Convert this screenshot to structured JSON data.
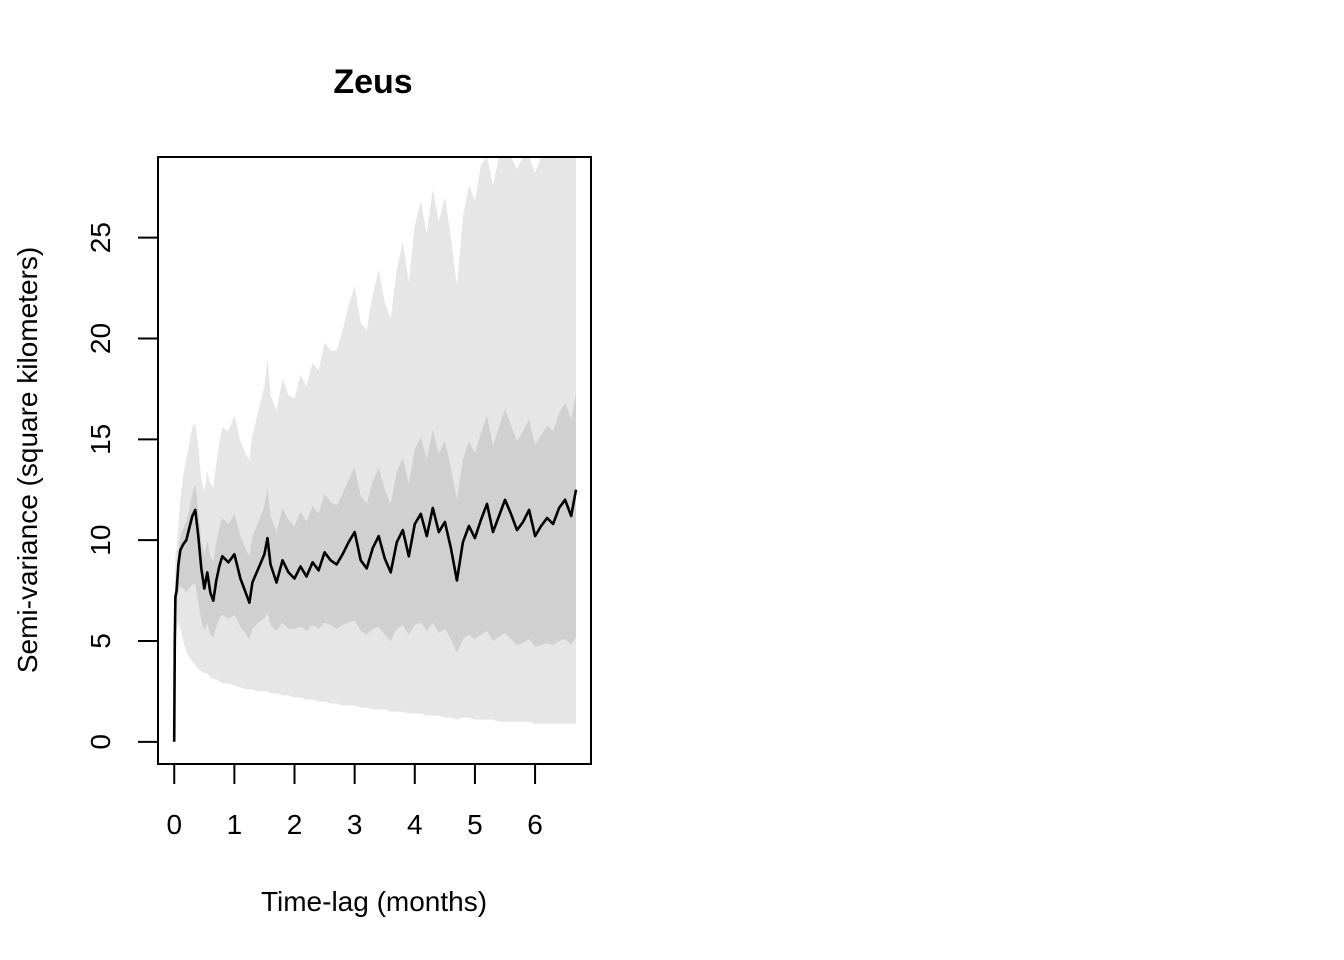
{
  "chart_data": {
    "type": "line",
    "title": "Zeus",
    "xlabel": "Time-lag (months)",
    "ylabel": "Semi-variance (square kilometers)",
    "xlim": [
      -0.27,
      6.93
    ],
    "ylim": [
      -1.1,
      29.0
    ],
    "xticks": [
      0,
      1,
      2,
      3,
      4,
      5,
      6
    ],
    "yticks": [
      0,
      5,
      10,
      15,
      20,
      25
    ],
    "grid": false,
    "legend": "none",
    "colors": {
      "line": "#000000",
      "outer_band": "#e6e6e6",
      "inner_band": "#d0d0d0",
      "frame": "#000000"
    },
    "series": [
      {
        "x": [
          0.0,
          0.01,
          0.02,
          0.04,
          0.07,
          0.1,
          0.15,
          0.2,
          0.25,
          0.3,
          0.35,
          0.4,
          0.45,
          0.5,
          0.55,
          0.6,
          0.65,
          0.7,
          0.75,
          0.8,
          0.9,
          1.0,
          1.1,
          1.2,
          1.25,
          1.3,
          1.4,
          1.5,
          1.55,
          1.6,
          1.7,
          1.8,
          1.9,
          2.0,
          2.1,
          2.2,
          2.3,
          2.4,
          2.5,
          2.6,
          2.7,
          2.8,
          2.9,
          3.0,
          3.1,
          3.2,
          3.3,
          3.4,
          3.5,
          3.6,
          3.7,
          3.8,
          3.9,
          4.0,
          4.1,
          4.2,
          4.3,
          4.4,
          4.5,
          4.6,
          4.7,
          4.8,
          4.9,
          5.0,
          5.1,
          5.2,
          5.3,
          5.4,
          5.5,
          5.6,
          5.7,
          5.8,
          5.9,
          6.0,
          6.1,
          6.2,
          6.3,
          6.4,
          6.5,
          6.6,
          6.68
        ],
        "semivariance": [
          0.0,
          5.0,
          7.2,
          7.5,
          8.8,
          9.5,
          9.8,
          10.0,
          10.6,
          11.2,
          11.5,
          10.2,
          8.6,
          7.6,
          8.4,
          7.4,
          7.0,
          8.0,
          8.7,
          9.2,
          8.9,
          9.3,
          8.1,
          7.3,
          6.9,
          7.9,
          8.6,
          9.3,
          10.1,
          8.8,
          7.9,
          9.0,
          8.4,
          8.1,
          8.7,
          8.2,
          8.9,
          8.5,
          9.4,
          9.0,
          8.8,
          9.3,
          9.9,
          10.4,
          9.0,
          8.6,
          9.6,
          10.2,
          9.1,
          8.4,
          9.9,
          10.5,
          9.2,
          10.8,
          11.3,
          10.2,
          11.6,
          10.4,
          10.9,
          9.6,
          8.0,
          9.9,
          10.7,
          10.1,
          11.0,
          11.8,
          10.4,
          11.2,
          12.0,
          11.3,
          10.5,
          10.9,
          11.5,
          10.2,
          10.7,
          11.1,
          10.8,
          11.6,
          12.0,
          11.2,
          12.5
        ],
        "inner_upper": [
          0.0,
          6.0,
          8.0,
          8.4,
          9.4,
          10.2,
          10.6,
          10.9,
          11.5,
          12.3,
          12.8,
          11.5,
          10.0,
          9.3,
          10.0,
          9.2,
          8.9,
          9.9,
          10.6,
          11.1,
          10.8,
          11.3,
          10.2,
          9.5,
          9.2,
          10.2,
          10.9,
          11.7,
          12.6,
          11.2,
          10.4,
          11.6,
          11.0,
          10.7,
          11.4,
          10.9,
          11.7,
          11.3,
          12.3,
          11.9,
          11.7,
          12.3,
          13.0,
          13.6,
          12.2,
          11.8,
          12.9,
          13.6,
          12.5,
          11.8,
          13.4,
          14.1,
          12.8,
          14.5,
          15.1,
          14.0,
          15.5,
          14.3,
          14.9,
          13.6,
          12.0,
          14.0,
          14.9,
          14.3,
          15.3,
          16.2,
          14.7,
          15.6,
          16.5,
          15.7,
          14.9,
          15.4,
          16.0,
          14.7,
          15.2,
          15.7,
          15.4,
          16.3,
          16.8,
          16.0,
          17.3
        ],
        "inner_lower": [
          0.0,
          4.0,
          6.4,
          6.6,
          7.5,
          7.7,
          7.6,
          7.4,
          7.6,
          7.8,
          7.8,
          6.9,
          6.0,
          5.5,
          5.9,
          5.3,
          5.2,
          5.7,
          6.1,
          6.3,
          6.1,
          6.3,
          5.7,
          5.3,
          5.1,
          5.6,
          5.9,
          6.1,
          6.4,
          5.8,
          5.5,
          5.9,
          5.6,
          5.6,
          5.7,
          5.5,
          5.8,
          5.6,
          5.9,
          5.8,
          5.6,
          5.8,
          5.9,
          6.0,
          5.5,
          5.3,
          5.6,
          5.7,
          5.3,
          5.0,
          5.6,
          5.8,
          5.3,
          5.8,
          5.9,
          5.5,
          5.9,
          5.4,
          5.6,
          5.1,
          4.4,
          5.1,
          5.3,
          5.1,
          5.3,
          5.5,
          5.0,
          5.2,
          5.4,
          5.1,
          4.8,
          4.9,
          5.1,
          4.7,
          4.8,
          4.9,
          4.8,
          5.0,
          5.1,
          4.8,
          5.2
        ],
        "outer_upper": [
          0.0,
          7.5,
          9.2,
          9.6,
          10.8,
          12.0,
          13.2,
          14.0,
          14.8,
          15.6,
          15.8,
          14.6,
          13.0,
          12.4,
          13.4,
          12.8,
          12.6,
          13.8,
          14.8,
          15.6,
          15.4,
          16.2,
          14.9,
          14.2,
          14.0,
          15.2,
          16.4,
          17.6,
          19.0,
          17.2,
          16.4,
          18.0,
          17.2,
          17.0,
          18.2,
          17.6,
          18.8,
          18.4,
          19.8,
          19.4,
          19.4,
          20.4,
          21.6,
          22.6,
          20.8,
          20.4,
          22.2,
          23.4,
          21.8,
          21.0,
          23.4,
          24.8,
          22.8,
          25.6,
          26.8,
          25.2,
          27.4,
          25.8,
          27.0,
          25.0,
          22.6,
          26.0,
          27.6,
          26.8,
          28.6,
          29.0,
          27.6,
          29.0,
          29.0,
          29.0,
          28.4,
          29.0,
          29.0,
          28.2,
          29.0,
          29.0,
          29.0,
          29.0,
          29.0,
          29.0,
          29.0
        ],
        "outer_lower": [
          0.0,
          2.0,
          4.8,
          5.4,
          6.0,
          5.6,
          5.0,
          4.5,
          4.2,
          4.0,
          3.8,
          3.6,
          3.5,
          3.4,
          3.4,
          3.2,
          3.1,
          3.1,
          3.0,
          2.9,
          2.9,
          2.8,
          2.7,
          2.6,
          2.6,
          2.6,
          2.5,
          2.5,
          2.5,
          2.4,
          2.4,
          2.3,
          2.3,
          2.2,
          2.2,
          2.1,
          2.1,
          2.0,
          2.0,
          1.9,
          1.9,
          1.8,
          1.8,
          1.8,
          1.7,
          1.7,
          1.6,
          1.6,
          1.6,
          1.5,
          1.5,
          1.5,
          1.4,
          1.4,
          1.4,
          1.3,
          1.3,
          1.3,
          1.2,
          1.2,
          1.1,
          1.2,
          1.2,
          1.1,
          1.1,
          1.1,
          1.1,
          1.0,
          1.0,
          1.0,
          1.0,
          1.0,
          1.0,
          0.9,
          0.9,
          0.9,
          0.9,
          0.9,
          0.9,
          0.9,
          0.9
        ]
      }
    ]
  }
}
